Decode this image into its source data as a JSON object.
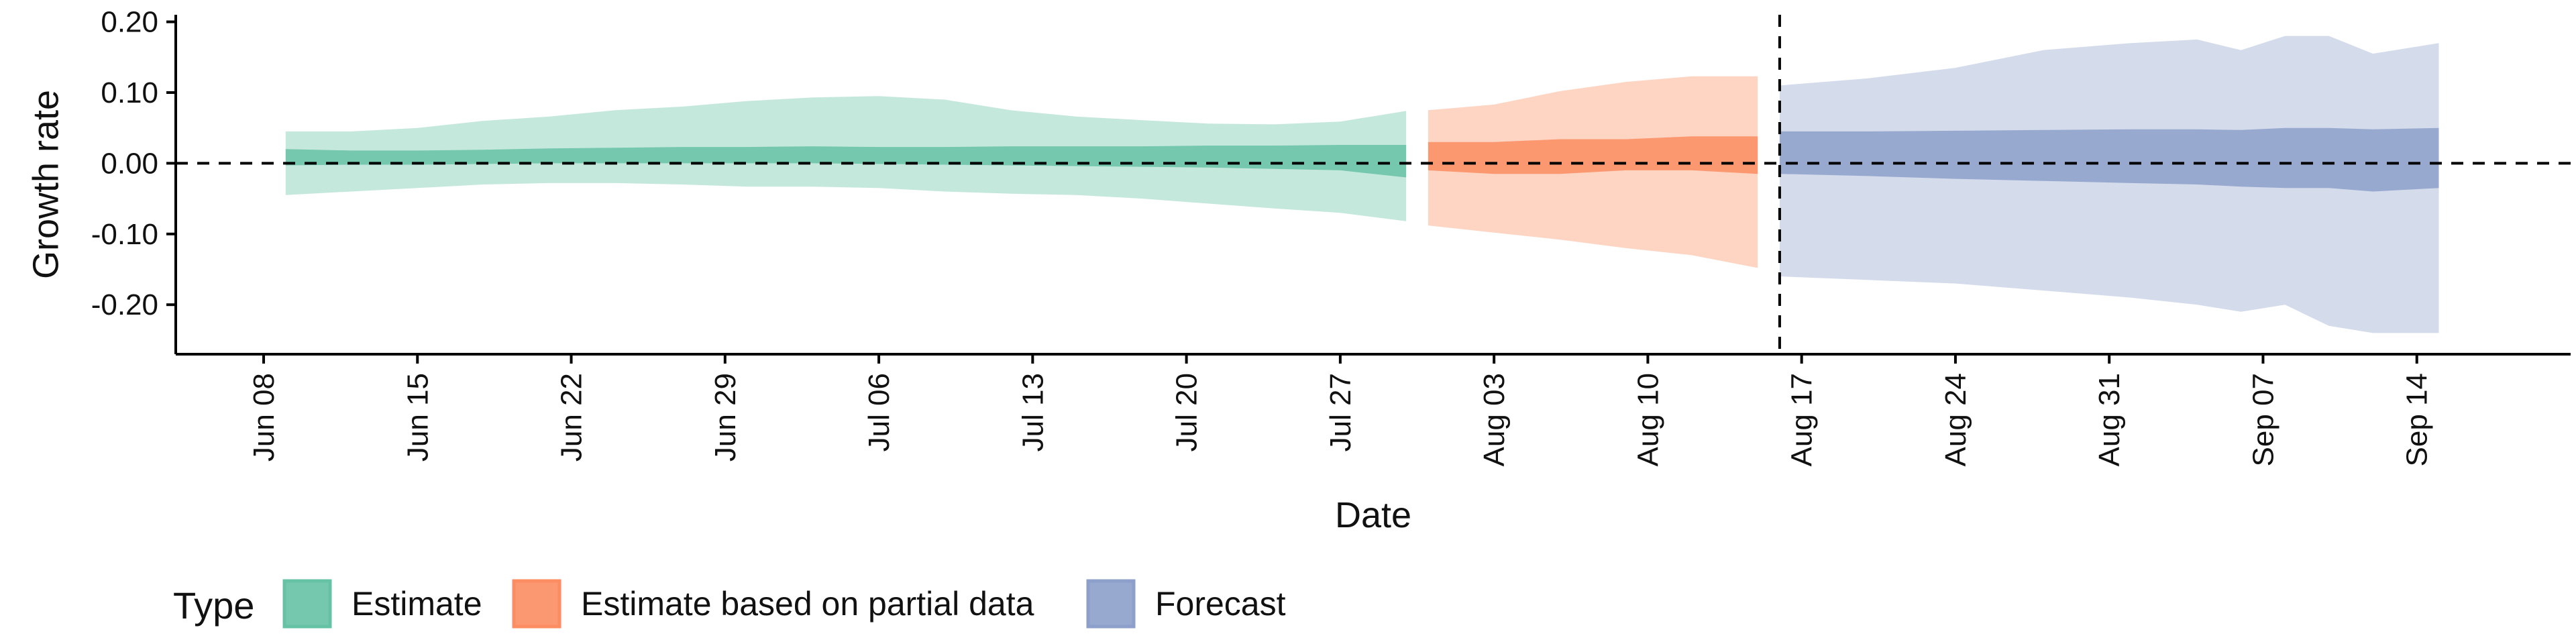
{
  "chart_data": {
    "type": "area",
    "title": "",
    "xlabel": "Date",
    "ylabel": "Growth rate",
    "ylim": [
      -0.27,
      0.21
    ],
    "xlim": [
      "2020-06-04",
      "2020-09-21"
    ],
    "yticks": [
      -0.2,
      -0.1,
      0.0,
      0.1,
      0.2
    ],
    "ytick_labels": [
      "-0.20",
      "-0.10",
      "0.00",
      "0.10",
      "0.20"
    ],
    "xticks": [
      "2020-06-08",
      "2020-06-15",
      "2020-06-22",
      "2020-06-29",
      "2020-07-06",
      "2020-07-13",
      "2020-07-20",
      "2020-07-27",
      "2020-08-03",
      "2020-08-10",
      "2020-08-17",
      "2020-08-24",
      "2020-08-31",
      "2020-09-07",
      "2020-09-14"
    ],
    "xtick_labels": [
      "Jun 08",
      "Jun 15",
      "Jun 22",
      "Jun 29",
      "Jul 06",
      "Jul 13",
      "Jul 20",
      "Jul 27",
      "Aug 03",
      "Aug 10",
      "Aug 17",
      "Aug 24",
      "Aug 31",
      "Sep 07",
      "Sep 14"
    ],
    "hline": 0.0,
    "vline": "2020-08-16",
    "grid": false,
    "legend": {
      "title": "Type",
      "position": "bottom"
    },
    "series": [
      {
        "name": "Estimate",
        "color": "#66c2a5",
        "dates": [
          "2020-06-09",
          "2020-06-12",
          "2020-06-15",
          "2020-06-18",
          "2020-06-21",
          "2020-06-24",
          "2020-06-27",
          "2020-06-30",
          "2020-07-03",
          "2020-07-06",
          "2020-07-09",
          "2020-07-12",
          "2020-07-15",
          "2020-07-18",
          "2020-07-21",
          "2020-07-24",
          "2020-07-27",
          "2020-07-30"
        ],
        "outer_upper": [
          0.045,
          0.045,
          0.05,
          0.06,
          0.066,
          0.075,
          0.08,
          0.088,
          0.093,
          0.095,
          0.09,
          0.075,
          0.066,
          0.061,
          0.056,
          0.055,
          0.059,
          0.074
        ],
        "outer_lower": [
          -0.045,
          -0.04,
          -0.035,
          -0.03,
          -0.028,
          -0.028,
          -0.03,
          -0.033,
          -0.033,
          -0.035,
          -0.04,
          -0.043,
          -0.045,
          -0.05,
          -0.057,
          -0.064,
          -0.07,
          -0.082
        ],
        "inner_upper": [
          0.02,
          0.018,
          0.018,
          0.019,
          0.021,
          0.022,
          0.023,
          0.023,
          0.024,
          0.023,
          0.023,
          0.024,
          0.024,
          0.024,
          0.025,
          0.025,
          0.026,
          0.026
        ],
        "inner_lower": [
          -0.003,
          -0.002,
          -0.002,
          -0.001,
          0.0,
          0.0,
          0.0,
          0.0,
          0.0,
          -0.001,
          -0.002,
          -0.003,
          -0.004,
          -0.005,
          -0.006,
          -0.008,
          -0.01,
          -0.02
        ]
      },
      {
        "name": "Estimate based on partial data",
        "color": "#fc8d62",
        "dates": [
          "2020-07-31",
          "2020-08-03",
          "2020-08-06",
          "2020-08-09",
          "2020-08-12",
          "2020-08-15"
        ],
        "outer_upper": [
          0.075,
          0.083,
          0.102,
          0.115,
          0.123,
          0.123
        ],
        "outer_lower": [
          -0.088,
          -0.098,
          -0.108,
          -0.12,
          -0.13,
          -0.148
        ],
        "inner_upper": [
          0.03,
          0.03,
          0.034,
          0.034,
          0.038,
          0.038
        ],
        "inner_lower": [
          -0.01,
          -0.015,
          -0.015,
          -0.01,
          -0.01,
          -0.015
        ]
      },
      {
        "name": "Forecast",
        "color": "#8da0cb",
        "dates": [
          "2020-08-16",
          "2020-08-20",
          "2020-08-24",
          "2020-08-28",
          "2020-09-01",
          "2020-09-04",
          "2020-09-06",
          "2020-09-08",
          "2020-09-10",
          "2020-09-12",
          "2020-09-15"
        ],
        "outer_upper": [
          0.11,
          0.12,
          0.135,
          0.16,
          0.17,
          0.175,
          0.16,
          0.18,
          0.18,
          0.155,
          0.17
        ],
        "outer_lower": [
          -0.16,
          -0.165,
          -0.17,
          -0.18,
          -0.19,
          -0.2,
          -0.21,
          -0.2,
          -0.23,
          -0.24,
          -0.24
        ],
        "inner_upper": [
          0.045,
          0.045,
          0.046,
          0.047,
          0.048,
          0.048,
          0.047,
          0.05,
          0.05,
          0.048,
          0.05
        ],
        "inner_lower": [
          -0.015,
          -0.018,
          -0.022,
          -0.025,
          -0.028,
          -0.03,
          -0.033,
          -0.035,
          -0.035,
          -0.04,
          -0.035
        ]
      }
    ]
  }
}
